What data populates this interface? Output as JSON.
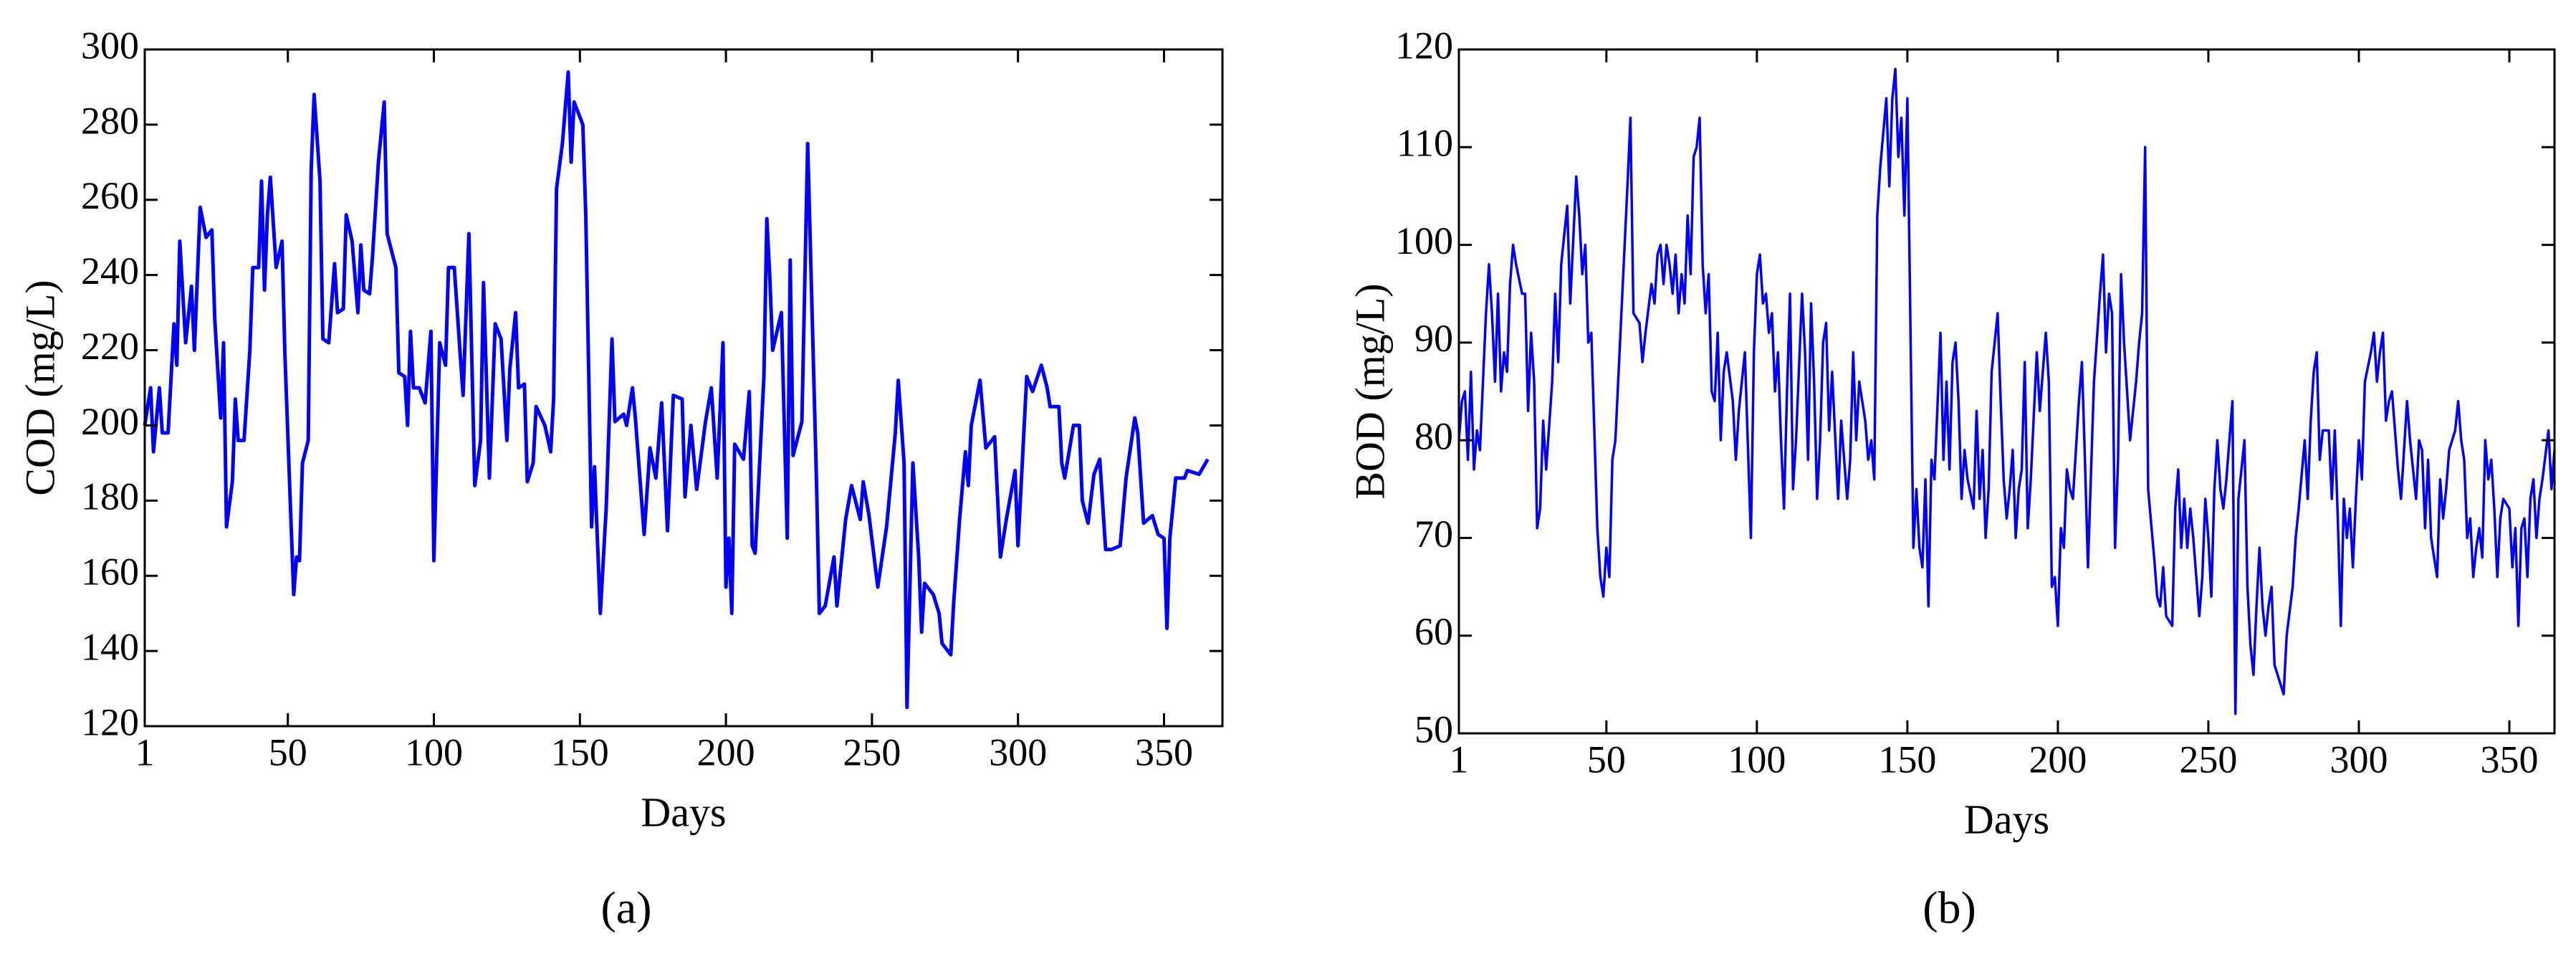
{
  "chart_data": [
    {
      "type": "line",
      "panel_label": "(a)",
      "xlabel": "Days",
      "ylabel": "COD (mg/L)",
      "color": "#0000ff",
      "xlim": [
        1,
        370
      ],
      "xticks": [
        1,
        50,
        100,
        150,
        200,
        250,
        300,
        350
      ],
      "ylim": [
        120,
        300
      ],
      "yticks": [
        120,
        140,
        160,
        180,
        200,
        220,
        240,
        260,
        280,
        300
      ],
      "x": [
        1,
        3,
        4,
        6,
        7,
        9,
        11,
        12,
        13,
        15,
        17,
        18,
        20,
        22,
        24,
        25,
        27,
        28,
        29,
        31,
        32,
        33,
        35,
        37,
        38,
        40,
        41,
        42,
        43,
        44,
        46,
        48,
        49,
        51,
        52,
        53,
        54,
        55,
        57,
        58,
        59,
        61,
        62,
        64,
        66,
        67,
        69,
        70,
        72,
        74,
        75,
        76,
        78,
        79,
        81,
        83,
        84,
        87,
        88,
        90,
        91,
        92,
        93,
        95,
        97,
        99,
        100,
        102,
        104,
        105,
        107,
        109,
        110,
        112,
        114,
        116,
        117,
        119,
        121,
        123,
        125,
        126,
        128,
        129,
        131,
        132,
        134,
        135,
        138,
        140,
        141,
        142,
        144,
        146,
        147,
        148,
        151,
        152,
        154,
        155,
        157,
        159,
        161,
        162,
        165,
        166,
        168,
        169,
        172,
        174,
        176,
        178,
        180,
        182,
        185,
        186,
        188,
        190,
        193,
        195,
        197,
        199,
        200,
        201,
        202,
        203,
        206,
        208,
        209,
        210,
        213,
        214,
        215,
        216,
        219,
        221,
        222,
        223,
        226,
        228,
        231,
        232,
        234,
        237,
        238,
        241,
        243,
        246,
        247,
        249,
        252,
        255,
        258,
        259,
        261,
        262,
        264,
        266,
        267,
        268,
        271,
        273,
        274,
        277,
        278,
        280,
        282,
        283,
        284,
        287,
        289,
        292,
        294,
        296,
        299,
        300,
        303,
        305,
        308,
        310,
        311,
        314,
        315,
        316,
        319,
        321,
        322,
        324,
        326,
        328,
        330,
        332,
        335,
        337,
        340,
        341,
        343,
        346,
        348,
        350,
        351,
        352,
        354,
        357,
        358,
        362,
        365
      ],
      "values": [
        200,
        210,
        193,
        210,
        198,
        198,
        227,
        216,
        249,
        222,
        237,
        220,
        258,
        250,
        252,
        228,
        202,
        222,
        173,
        185,
        207,
        196,
        196,
        220,
        242,
        242,
        265,
        236,
        256,
        266,
        242,
        249,
        219,
        176,
        155,
        165,
        164,
        190,
        196,
        268,
        288,
        265,
        223,
        222,
        243,
        230,
        231,
        256,
        249,
        230,
        248,
        236,
        235,
        245,
        270,
        286,
        251,
        242,
        214,
        213,
        200,
        225,
        210,
        210,
        206,
        225,
        164,
        222,
        216,
        242,
        242,
        219,
        208,
        251,
        184,
        196,
        238,
        186,
        227,
        223,
        196,
        215,
        230,
        210,
        211,
        185,
        190,
        205,
        200,
        193,
        207,
        263,
        275,
        294,
        270,
        286,
        280,
        256,
        173,
        189,
        150,
        178,
        223,
        201,
        203,
        200,
        210,
        202,
        171,
        194,
        186,
        206,
        172,
        208,
        207,
        181,
        200,
        183,
        201,
        210,
        186,
        222,
        157,
        170,
        150,
        195,
        191,
        209,
        168,
        166,
        213,
        255,
        240,
        220,
        230,
        170,
        244,
        192,
        201,
        275,
        185,
        150,
        152,
        165,
        152,
        175,
        184,
        175,
        185,
        176,
        157,
        173,
        198,
        212,
        190,
        125,
        190,
        165,
        145,
        158,
        155,
        150,
        142,
        139,
        153,
        175,
        193,
        184,
        200,
        212,
        194,
        197,
        165,
        175,
        188,
        168,
        213,
        209,
        216,
        210,
        205,
        205,
        190,
        186,
        200,
        200,
        180,
        174,
        187,
        191,
        167,
        167,
        168,
        186,
        202,
        198,
        174,
        176,
        171,
        170,
        146,
        170,
        186,
        186,
        188,
        187,
        191
      ]
    },
    {
      "type": "line",
      "panel_label": "(b)",
      "xlabel": "Days",
      "ylabel": "BOD (mg/L)",
      "color": "#0000ff",
      "xlim": [
        1,
        365
      ],
      "xticks": [
        1,
        50,
        100,
        150,
        200,
        250,
        300,
        350
      ],
      "ylim": [
        50,
        120
      ],
      "yticks": [
        50,
        60,
        70,
        80,
        90,
        100,
        110,
        120
      ],
      "x": [
        1,
        2,
        3,
        4,
        5,
        6,
        7,
        8,
        10,
        11,
        12,
        13,
        14,
        15,
        16,
        17,
        18,
        19,
        20,
        22,
        23,
        24,
        25,
        26,
        27,
        28,
        29,
        30,
        32,
        33,
        34,
        35,
        37,
        38,
        40,
        41,
        42,
        43,
        44,
        45,
        47,
        48,
        49,
        50,
        51,
        52,
        53,
        55,
        57,
        58,
        59,
        61,
        62,
        63,
        65,
        66,
        67,
        68,
        69,
        70,
        71,
        72,
        73,
        74,
        75,
        76,
        77,
        78,
        79,
        80,
        81,
        82,
        83,
        84,
        85,
        86,
        87,
        88,
        89,
        90,
        92,
        93,
        94,
        96,
        98,
        99,
        100,
        101,
        102,
        103,
        104,
        105,
        106,
        107,
        108,
        109,
        110,
        111,
        112,
        113,
        115,
        116,
        117,
        118,
        119,
        120,
        121,
        122,
        123,
        124,
        125,
        127,
        128,
        130,
        131,
        132,
        133,
        134,
        135,
        136,
        137,
        138,
        139,
        140,
        141,
        143,
        144,
        145,
        146,
        147,
        148,
        149,
        150,
        152,
        153,
        154,
        155,
        156,
        157,
        158,
        159,
        161,
        162,
        163,
        164,
        165,
        166,
        167,
        168,
        169,
        170,
        172,
        173,
        174,
        175,
        176,
        177,
        178,
        180,
        181,
        182,
        183,
        184,
        185,
        186,
        187,
        188,
        189,
        190,
        191,
        193,
        194,
        196,
        197,
        198,
        199,
        200,
        201,
        202,
        203,
        204,
        205,
        207,
        208,
        209,
        210,
        212,
        214,
        215,
        216,
        217,
        218,
        219,
        220,
        221,
        222,
        224,
        226,
        227,
        228,
        229,
        230,
        232,
        233,
        234,
        235,
        236,
        238,
        239,
        240,
        241,
        242,
        243,
        244,
        245,
        247,
        248,
        249,
        250,
        251,
        252,
        253,
        254,
        255,
        256,
        258,
        259,
        260,
        262,
        263,
        264,
        265,
        266,
        267,
        268,
        269,
        270,
        271,
        272,
        273,
        275,
        276,
        278,
        279,
        280,
        282,
        283,
        284,
        285,
        286,
        287,
        288,
        290,
        291,
        292,
        293,
        294,
        295,
        296,
        297,
        298,
        299,
        300,
        301,
        302,
        304,
        305,
        306,
        307,
        308,
        309,
        310,
        311,
        313,
        314,
        315,
        316,
        317,
        318,
        319,
        320,
        321,
        322,
        323,
        324,
        325,
        326,
        327,
        328,
        329,
        330,
        332,
        333,
        334,
        335,
        336,
        337,
        338,
        339,
        340,
        341,
        342,
        343,
        344,
        345,
        346,
        347,
        348,
        350,
        351,
        352,
        353,
        354,
        355,
        356,
        357,
        358,
        359,
        360,
        361,
        363,
        364,
        365
      ],
      "values": [
        80,
        84,
        85,
        78,
        87,
        77,
        81,
        79,
        93,
        98,
        93,
        86,
        95,
        85,
        89,
        87,
        96,
        100,
        98,
        95,
        95,
        83,
        91,
        86,
        71,
        73,
        82,
        77,
        86,
        95,
        88,
        98,
        104,
        94,
        107,
        103,
        97,
        100,
        90,
        91,
        71,
        66,
        64,
        69,
        66,
        78,
        80,
        93,
        106,
        113,
        93,
        92,
        88,
        91,
        96,
        94,
        99,
        100,
        96,
        100,
        98,
        95,
        99,
        93,
        97,
        94,
        103,
        97,
        109,
        110,
        113,
        98,
        93,
        97,
        85,
        84,
        91,
        80,
        87,
        89,
        84,
        78,
        83,
        89,
        70,
        89,
        97,
        99,
        94,
        95,
        91,
        93,
        85,
        89,
        80,
        73,
        85,
        95,
        75,
        80,
        95,
        89,
        78,
        94,
        86,
        74,
        80,
        90,
        92,
        81,
        87,
        74,
        82,
        74,
        78,
        89,
        80,
        86,
        84,
        82,
        78,
        80,
        76,
        103,
        108,
        115,
        106,
        115,
        118,
        109,
        113,
        103,
        115,
        69,
        75,
        69,
        67,
        76,
        63,
        78,
        76,
        91,
        78,
        86,
        77,
        88,
        90,
        84,
        74,
        79,
        76,
        73,
        83,
        74,
        79,
        70,
        75,
        87,
        93,
        84,
        76,
        72,
        75,
        79,
        70,
        75,
        77,
        88,
        71,
        76,
        89,
        83,
        91,
        86,
        65,
        66,
        61,
        71,
        69,
        77,
        75,
        74,
        84,
        88,
        78,
        67,
        86,
        95,
        99,
        89,
        95,
        93,
        69,
        78,
        97,
        90,
        80,
        86,
        90,
        93,
        110,
        75,
        68,
        64,
        63,
        67,
        62,
        61,
        73,
        77,
        69,
        74,
        69,
        73,
        70,
        62,
        66,
        74,
        70,
        64,
        75,
        80,
        75,
        73,
        76,
        84,
        52,
        74,
        80,
        65,
        59,
        56,
        63,
        69,
        63,
        60,
        63,
        65,
        57,
        56,
        54,
        60,
        65,
        70,
        73,
        80,
        74,
        82,
        87,
        89,
        78,
        81,
        81,
        74,
        81,
        72,
        61,
        74,
        70,
        73,
        67,
        74,
        80,
        76,
        86,
        89,
        91,
        86,
        89,
        91,
        82,
        84,
        85,
        77,
        74,
        79,
        84,
        80,
        77,
        74,
        80,
        79,
        71,
        78,
        70,
        68,
        66,
        76,
        72,
        75,
        79,
        81,
        84,
        80,
        78,
        70,
        72,
        66,
        69,
        71,
        68,
        80,
        76,
        78,
        73,
        66,
        72,
        74,
        73,
        67,
        71,
        61,
        71,
        72,
        66,
        74,
        76,
        70,
        74,
        76,
        81,
        75,
        79
      ]
    }
  ]
}
